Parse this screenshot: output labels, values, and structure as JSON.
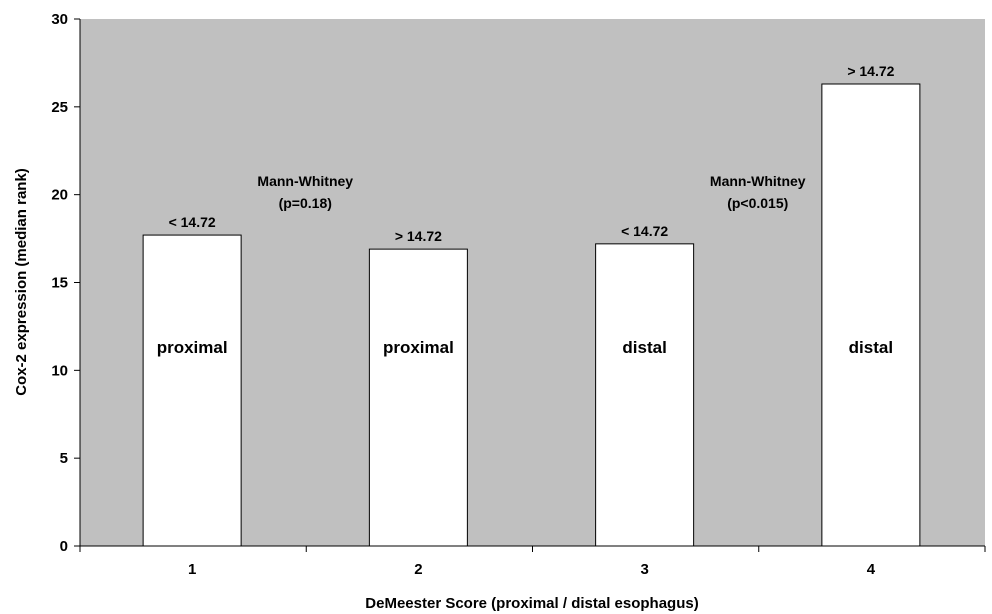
{
  "chart_data": {
    "type": "bar",
    "categories": [
      "1",
      "2",
      "3",
      "4"
    ],
    "values": [
      17.7,
      16.9,
      17.2,
      26.3
    ],
    "bar_inner_labels": [
      "proximal",
      "proximal",
      "distal",
      "distal"
    ],
    "bar_top_labels": [
      "< 14.72",
      "> 14.72",
      "< 14.72",
      "> 14.72"
    ],
    "xlabel": "DeMeester Score (proximal / distal esophagus)",
    "ylabel": "Cox-2 expression (median rank)",
    "ylim": [
      0,
      30
    ],
    "yticks": [
      "0",
      "5",
      "10",
      "15",
      "20",
      "25",
      "30"
    ],
    "annotations": [
      {
        "lines": [
          "Mann-Whitney",
          "(p=0.18)"
        ],
        "between": [
          1,
          2
        ],
        "y": 20.5
      },
      {
        "lines": [
          "Mann-Whitney",
          "(p<0.015)"
        ],
        "between": [
          3,
          4
        ],
        "y": 20.5
      }
    ],
    "grid": false,
    "legend": "none",
    "colors": {
      "plot_background": "#c0c0c0",
      "bar_fill": "#ffffff",
      "bar_stroke": "#000000"
    }
  }
}
